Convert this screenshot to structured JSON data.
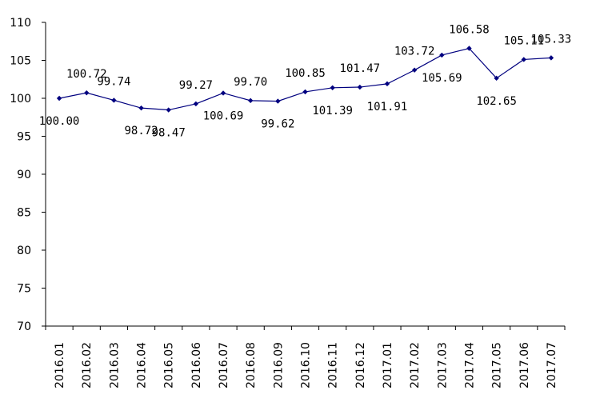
{
  "chart_data": {
    "type": "line",
    "categories": [
      "2016.01",
      "2016.02",
      "2016.03",
      "2016.04",
      "2016.05",
      "2016.06",
      "2016.07",
      "2016.08",
      "2016.09",
      "2016.10",
      "2016.11",
      "2016.12",
      "2017.01",
      "2017.02",
      "2017.03",
      "2017.04",
      "2017.05",
      "2017.06",
      "2017.07"
    ],
    "series": [
      {
        "values": [
          100.0,
          100.72,
          99.74,
          98.72,
          98.47,
          99.27,
          100.69,
          99.7,
          99.62,
          100.85,
          101.39,
          101.47,
          101.91,
          103.72,
          105.69,
          106.58,
          102.65,
          105.11,
          105.33
        ],
        "labels": [
          "100.00",
          "100.72",
          "99.74",
          "98.72",
          "98.47",
          "99.27",
          "100.69",
          "99.70",
          "99.62",
          "100.85",
          "101.39",
          "101.47",
          "101.91",
          "103.72",
          "105.69",
          "106.58",
          "102.65",
          "105.11",
          "105.33"
        ],
        "label_positions": [
          "below",
          "above",
          "above",
          "below",
          "below",
          "above",
          "below",
          "above",
          "below",
          "above",
          "below",
          "above",
          "below",
          "above",
          "below",
          "above",
          "below",
          "above",
          "above"
        ]
      }
    ],
    "ylim": [
      70,
      110
    ],
    "yticks": [
      "70",
      "75",
      "80",
      "85",
      "90",
      "95",
      "100",
      "105",
      "110"
    ],
    "grid": false,
    "legend": "none",
    "line_color": "#00007f"
  }
}
